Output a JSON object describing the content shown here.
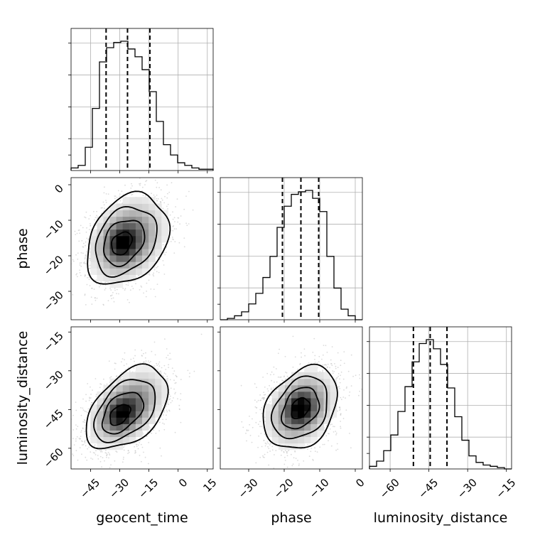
{
  "chart_data": {
    "type": "corner",
    "parameters": [
      "geocent_time",
      "phase",
      "luminosity_distance"
    ],
    "axis_labels": {
      "bottom": [
        "geocent_time",
        "phase",
        "luminosity_distance"
      ],
      "left": [
        "phase",
        "luminosity_distance"
      ]
    },
    "ranges": {
      "geocent_time": [
        -55,
        18
      ],
      "phase": [
        -38,
        2
      ],
      "luminosity_distance": [
        -68,
        -13
      ]
    },
    "ticks": {
      "geocent_time": [
        -45,
        -30,
        -15,
        0,
        15
      ],
      "phase": [
        -30,
        -20,
        -10,
        0
      ],
      "luminosity_distance": [
        -60,
        -45,
        -30,
        -15
      ]
    },
    "tick_labels": {
      "geocent_time": [
        "−45",
        "−30",
        "−15",
        "0",
        "15"
      ],
      "phase": [
        "−30",
        "−20",
        "−10",
        "0"
      ],
      "luminosity_distance": [
        "−60",
        "−45",
        "−30",
        "−15"
      ]
    },
    "marginals": {
      "geocent_time": {
        "bin_edges": [
          -55,
          -51.35,
          -47.7,
          -44.05,
          -40.4,
          -36.75,
          -33.1,
          -29.45,
          -25.8,
          -22.15,
          -18.5,
          -14.85,
          -11.2,
          -7.55,
          -3.9,
          -0.25,
          3.4,
          7.05,
          10.7,
          14.35,
          18
        ],
        "counts": [
          0.02,
          0.04,
          0.18,
          0.48,
          0.84,
          0.95,
          0.99,
          1.0,
          0.94,
          0.88,
          0.78,
          0.61,
          0.38,
          0.2,
          0.12,
          0.06,
          0.04,
          0.02,
          0.01,
          0.01
        ],
        "quantiles": [
          -37,
          -26,
          -14.5
        ]
      },
      "phase": {
        "bin_edges": [
          -38,
          -36,
          -34,
          -32,
          -30,
          -28,
          -26,
          -24,
          -22,
          -20,
          -18,
          -16,
          -14,
          -12,
          -10,
          -8,
          -6,
          -4,
          -2,
          0,
          2
        ],
        "counts": [
          0.0,
          0.01,
          0.03,
          0.06,
          0.12,
          0.2,
          0.32,
          0.48,
          0.7,
          0.86,
          0.95,
          0.97,
          0.98,
          0.92,
          0.82,
          0.48,
          0.24,
          0.08,
          0.03,
          0.0
        ],
        "quantiles": [
          -20.5,
          -15.3,
          -10.3
        ]
      },
      "luminosity_distance": {
        "bin_edges": [
          -68,
          -65.25,
          -62.5,
          -59.75,
          -57,
          -54.25,
          -51.5,
          -48.75,
          -46,
          -43.25,
          -40.5,
          -37.75,
          -35,
          -32.25,
          -29.5,
          -26.75,
          -24,
          -21.25,
          -18.5,
          -15.75,
          -13
        ],
        "counts": [
          0.02,
          0.06,
          0.14,
          0.26,
          0.44,
          0.63,
          0.82,
          0.96,
          0.99,
          0.92,
          0.8,
          0.62,
          0.4,
          0.22,
          0.1,
          0.05,
          0.03,
          0.02,
          0.01,
          0.0
        ],
        "quantiles": [
          -51,
          -44.5,
          -38
        ]
      }
    },
    "joint": [
      {
        "x": "geocent_time",
        "y": "phase",
        "center": [
          -26,
          -15.5
        ],
        "core": [
          -29,
          -16.5
        ],
        "spread": [
          10.5,
          6.4
        ],
        "correlation": 0.28
      },
      {
        "x": "geocent_time",
        "y": "luminosity_distance",
        "center": [
          -26,
          -44.5
        ],
        "core": [
          -30,
          -47
        ],
        "spread": [
          10.5,
          8
        ],
        "correlation": 0.45
      },
      {
        "x": "phase",
        "y": "luminosity_distance",
        "center": [
          -15.3,
          -44.5
        ],
        "core": [
          -15.5,
          -44.5
        ],
        "spread": [
          5.2,
          8
        ],
        "correlation": 0.3
      }
    ],
    "contour_levels_sigma": [
      0.5,
      1.0,
      1.5,
      2.0
    ],
    "grid": true
  }
}
